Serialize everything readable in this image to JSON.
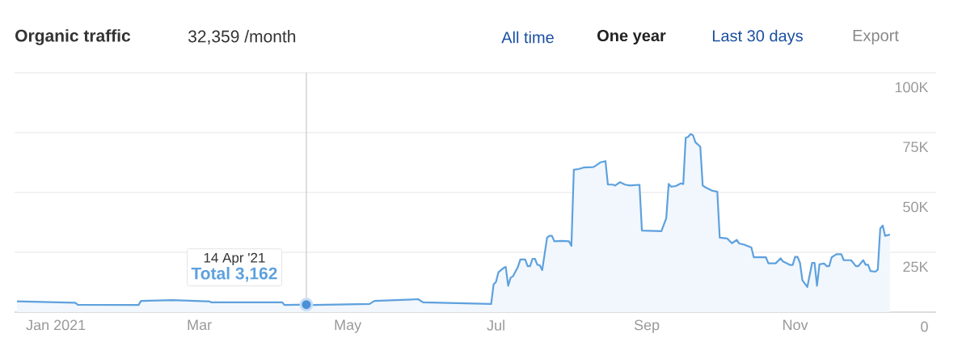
{
  "chart_data": {
    "type": "area",
    "title": "Organic traffic",
    "subtitle": "32,359 /month",
    "xlim": [
      "2020-12-15",
      "2021-12-29"
    ],
    "ylim": [
      0,
      100000
    ],
    "xticks": [
      {
        "value": "2021-01-01",
        "label": "Jan 2021"
      },
      {
        "value": "2021-03-01",
        "label": "Mar"
      },
      {
        "value": "2021-05-01",
        "label": "May"
      },
      {
        "value": "2021-07-01",
        "label": "Jul"
      },
      {
        "value": "2021-09-01",
        "label": "Sep"
      },
      {
        "value": "2021-11-01",
        "label": "Nov"
      }
    ],
    "yticks": [
      0,
      {
        "value": 25000,
        "label": "25K"
      },
      {
        "value": 50000,
        "label": "50K"
      },
      {
        "value": 75000,
        "label": "75K"
      },
      {
        "value": 100000,
        "label": "100K"
      }
    ],
    "grid": "y",
    "series": [
      {
        "color": "#5ea1de",
        "x": [
          "2020-12-16",
          "2021-01-09",
          "2021-01-10",
          "2021-02-04",
          "2021-02-05",
          "2021-02-18",
          "2021-03-05",
          "2021-03-06",
          "2021-04-04",
          "2021-04-05",
          "2021-04-14",
          "2021-04-17",
          "2021-05-10",
          "2021-05-12",
          "2021-05-30",
          "2021-06-01",
          "2021-06-29",
          "2021-06-30",
          "2021-07-01",
          "2021-07-02",
          "2021-07-04",
          "2021-07-05",
          "2021-07-06",
          "2021-07-07",
          "2021-07-08",
          "2021-07-10",
          "2021-07-11",
          "2021-07-13",
          "2021-07-14",
          "2021-07-15",
          "2021-07-16",
          "2021-07-17",
          "2021-07-18",
          "2021-07-19",
          "2021-07-20",
          "2021-07-22",
          "2021-07-23",
          "2021-07-24",
          "2021-07-25",
          "2021-07-28",
          "2021-07-31",
          "2021-08-01",
          "2021-08-02",
          "2021-08-04",
          "2021-08-06",
          "2021-08-10",
          "2021-08-11",
          "2021-08-13",
          "2021-08-15",
          "2021-08-16",
          "2021-08-18",
          "2021-08-19",
          "2021-08-21",
          "2021-08-23",
          "2021-08-25",
          "2021-08-29",
          "2021-08-30",
          "2021-09-07",
          "2021-09-09",
          "2021-09-10",
          "2021-09-11",
          "2021-09-13",
          "2021-09-15",
          "2021-09-16",
          "2021-09-17",
          "2021-09-18",
          "2021-09-19",
          "2021-09-20",
          "2021-09-21",
          "2021-09-23",
          "2021-09-24",
          "2021-09-25",
          "2021-09-28",
          "2021-09-30",
          "2021-10-01",
          "2021-10-04",
          "2021-10-06",
          "2021-10-08",
          "2021-10-09",
          "2021-10-11",
          "2021-10-14",
          "2021-10-15",
          "2021-10-20",
          "2021-10-21",
          "2021-10-24",
          "2021-10-26",
          "2021-10-27",
          "2021-10-30",
          "2021-10-31",
          "2021-11-01",
          "2021-11-02",
          "2021-11-03",
          "2021-11-04",
          "2021-11-06",
          "2021-11-08",
          "2021-11-09",
          "2021-11-10",
          "2021-11-11",
          "2021-11-13",
          "2021-11-14",
          "2021-11-15",
          "2021-11-16",
          "2021-11-18",
          "2021-11-20",
          "2021-11-21",
          "2021-11-24",
          "2021-11-26",
          "2021-11-27",
          "2021-11-29",
          "2021-11-30",
          "2021-12-01",
          "2021-12-02",
          "2021-12-04",
          "2021-12-05",
          "2021-12-06",
          "2021-12-07",
          "2021-12-08",
          "2021-12-10"
        ],
        "values": [
          4500,
          3900,
          3100,
          3000,
          4700,
          5000,
          4500,
          4100,
          4100,
          3000,
          3162,
          3000,
          3400,
          4700,
          5400,
          4100,
          3400,
          11600,
          12700,
          16700,
          18400,
          18900,
          11000,
          14400,
          15000,
          18900,
          22000,
          22000,
          19200,
          19200,
          22300,
          22300,
          19800,
          19600,
          17600,
          31100,
          31900,
          31900,
          29600,
          29800,
          29600,
          27700,
          59500,
          59800,
          60400,
          60600,
          61200,
          62600,
          63100,
          53300,
          53300,
          52900,
          54300,
          53300,
          52900,
          53200,
          34100,
          33800,
          39200,
          53600,
          52400,
          52700,
          53800,
          53500,
          72800,
          73200,
          74400,
          73900,
          71000,
          69100,
          52900,
          52200,
          50700,
          50300,
          31100,
          30800,
          28800,
          30200,
          28700,
          28200,
          27000,
          22900,
          22900,
          20400,
          20400,
          22500,
          21200,
          19700,
          19700,
          23100,
          23100,
          20600,
          13300,
          10500,
          20600,
          20600,
          11000,
          20000,
          20300,
          19200,
          19200,
          22900,
          24200,
          24200,
          21700,
          21700,
          19200,
          19200,
          21700,
          19800,
          19800,
          17200,
          16900,
          17800,
          34900,
          36200,
          31900,
          32400
        ]
      },
      {
        "type": "scatter",
        "color": "#4a90d9",
        "x": [
          "2021-04-14"
        ],
        "values": [
          3162
        ]
      }
    ],
    "ref_lines": [
      {
        "axis": "x",
        "value": "2021-04-14",
        "color": "#c8c8c8"
      }
    ],
    "annotations": [
      "All time",
      "One year",
      "Last 30 days",
      "Export",
      "14 Apr '21",
      "Total 3,162"
    ]
  }
}
